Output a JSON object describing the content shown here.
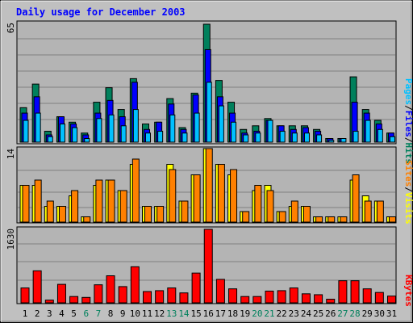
{
  "title": "Daily usage for December 2003",
  "colors": {
    "hits": "#00805c",
    "files": "#0000ff",
    "pages": "#00c0ff",
    "visits": "#ffff00",
    "sites": "#ff8000",
    "kbytes": "#ff0000",
    "weekend_day": "#00805c",
    "weekday": "#000000",
    "title_text": "#0000ff"
  },
  "chart_data": [
    {
      "type": "bar",
      "panel": "top",
      "scale_label": "65",
      "ylim": [
        0,
        65
      ],
      "legend": [
        {
          "key": "pages",
          "label": "Pages"
        },
        {
          "key": "files",
          "label": "Files"
        },
        {
          "key": "hits",
          "label": "Hits"
        }
      ],
      "categories": [
        "1",
        "2",
        "3",
        "4",
        "5",
        "6",
        "7",
        "8",
        "9",
        "10",
        "11",
        "12",
        "13",
        "14",
        "15",
        "16",
        "17",
        "18",
        "19",
        "20",
        "21",
        "22",
        "23",
        "24",
        "25",
        "26",
        "27",
        "28",
        "29",
        "30",
        "31"
      ],
      "series": [
        {
          "name": "Hits",
          "key": "hits",
          "values": [
            19,
            32,
            6,
            14,
            11,
            5,
            22,
            30,
            18,
            35,
            10,
            11,
            24,
            8,
            27,
            65,
            34,
            22,
            7,
            9,
            13,
            9,
            9,
            9,
            7,
            2,
            2,
            36,
            18,
            12,
            5
          ]
        },
        {
          "name": "Files",
          "key": "files",
          "values": [
            16,
            25,
            4,
            14,
            10,
            4,
            16,
            23,
            14,
            33,
            7,
            11,
            21,
            7,
            26,
            51,
            25,
            16,
            5,
            6,
            12,
            9,
            7,
            8,
            6,
            2,
            2,
            22,
            16,
            10,
            5
          ]
        },
        {
          "name": "Pages",
          "key": "pages",
          "values": [
            12,
            16,
            3,
            10,
            8,
            2,
            13,
            15,
            9,
            18,
            5,
            6,
            15,
            5,
            16,
            33,
            20,
            11,
            4,
            5,
            12,
            6,
            5,
            5,
            4,
            1,
            2,
            6,
            12,
            7,
            3
          ]
        }
      ]
    },
    {
      "type": "bar",
      "panel": "middle",
      "scale_label": "14",
      "ylim": [
        0,
        14
      ],
      "legend": [
        {
          "key": "sites",
          "label": "Sites"
        },
        {
          "key": "visits",
          "label": "Visits"
        }
      ],
      "categories": [
        "1",
        "2",
        "3",
        "4",
        "5",
        "6",
        "7",
        "8",
        "9",
        "10",
        "11",
        "12",
        "13",
        "14",
        "15",
        "16",
        "17",
        "18",
        "19",
        "20",
        "21",
        "22",
        "23",
        "24",
        "25",
        "26",
        "27",
        "28",
        "29",
        "30",
        "31"
      ],
      "series": [
        {
          "name": "Visits",
          "key": "visits",
          "values": [
            7,
            7,
            3,
            3,
            5,
            1,
            7,
            8,
            6,
            11,
            3,
            3,
            11,
            4,
            9,
            14,
            11,
            9,
            2,
            6,
            7,
            2,
            3,
            3,
            1,
            1,
            1,
            8,
            5,
            4,
            1
          ]
        },
        {
          "name": "Sites",
          "key": "sites",
          "values": [
            7,
            8,
            4,
            3,
            6,
            1,
            8,
            8,
            6,
            12,
            3,
            3,
            10,
            4,
            9,
            14,
            11,
            10,
            2,
            7,
            6,
            2,
            4,
            3,
            1,
            1,
            1,
            9,
            4,
            4,
            1
          ]
        }
      ]
    },
    {
      "type": "bar",
      "panel": "bottom",
      "scale_label": "1630",
      "ylim": [
        0,
        1630
      ],
      "legend": [
        {
          "key": "kbytes",
          "label": "KBytes"
        }
      ],
      "categories": [
        "1",
        "2",
        "3",
        "4",
        "5",
        "6",
        "7",
        "8",
        "9",
        "10",
        "11",
        "12",
        "13",
        "14",
        "15",
        "16",
        "17",
        "18",
        "19",
        "20",
        "21",
        "22",
        "23",
        "24",
        "25",
        "26",
        "27",
        "28",
        "29",
        "30",
        "31"
      ],
      "series": [
        {
          "name": "KBytes",
          "key": "kbytes",
          "values": [
            330,
            710,
            60,
            410,
            140,
            120,
            400,
            600,
            360,
            800,
            250,
            270,
            330,
            220,
            660,
            1630,
            520,
            310,
            140,
            140,
            260,
            270,
            330,
            200,
            180,
            80,
            490,
            490,
            310,
            230,
            150
          ]
        }
      ]
    }
  ],
  "x_axis": {
    "labels": [
      "1",
      "2",
      "3",
      "4",
      "5",
      "6",
      "7",
      "8",
      "9",
      "10",
      "11",
      "12",
      "13",
      "14",
      "15",
      "16",
      "17",
      "18",
      "19",
      "20",
      "21",
      "22",
      "23",
      "24",
      "25",
      "26",
      "27",
      "28",
      "29",
      "30",
      "31"
    ],
    "weekend_days": [
      "6",
      "7",
      "13",
      "14",
      "20",
      "21",
      "27",
      "28"
    ]
  }
}
